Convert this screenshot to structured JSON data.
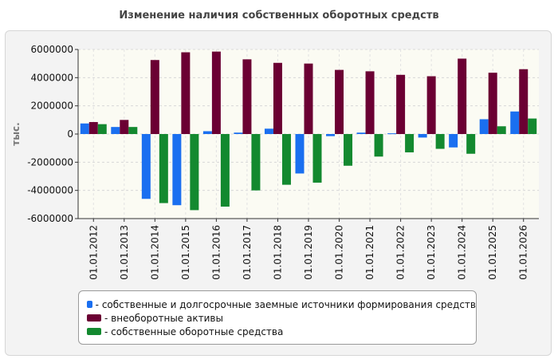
{
  "title": "Изменение наличия собственных оборотных средств",
  "chart_data": {
    "type": "bar",
    "title": "Изменение наличия собственных оборотных средств",
    "ylabel": "тыс.",
    "xlabel": "",
    "ylim": [
      -6000000,
      6000000
    ],
    "yticks": [
      6000000,
      4000000,
      2000000,
      0,
      -2000000,
      -4000000,
      -6000000
    ],
    "grid": true,
    "legend_position": "bottom",
    "categories": [
      "01.01.2012",
      "01.01.2013",
      "01.01.2014",
      "01.01.2015",
      "01.01.2016",
      "01.01.2017",
      "01.01.2018",
      "01.01.2019",
      "01.01.2020",
      "01.01.2021",
      "01.01.2022",
      "01.01.2023",
      "01.01.2024",
      "01.01.2025",
      "01.01.2026"
    ],
    "series": [
      {
        "name": "- собственные и долгосрочные заемные источники формирования средств",
        "color": "#1a6ff0",
        "values": [
          750000,
          500000,
          -4600000,
          -5050000,
          200000,
          100000,
          380000,
          -2800000,
          -150000,
          100000,
          50000,
          -250000,
          -950000,
          1050000,
          1600000
        ]
      },
      {
        "name": "- внеоборотные активы",
        "color": "#6b0033",
        "values": [
          850000,
          1000000,
          5250000,
          5800000,
          5850000,
          5300000,
          5050000,
          5000000,
          4550000,
          4450000,
          4200000,
          4100000,
          5350000,
          4350000,
          4600000
        ]
      },
      {
        "name": "- собственные оборотные средства",
        "color": "#13892f",
        "values": [
          700000,
          500000,
          -4900000,
          -5400000,
          -5150000,
          -4000000,
          -3600000,
          -3450000,
          -2250000,
          -1600000,
          -1300000,
          -1050000,
          -1400000,
          550000,
          1100000
        ]
      }
    ]
  }
}
